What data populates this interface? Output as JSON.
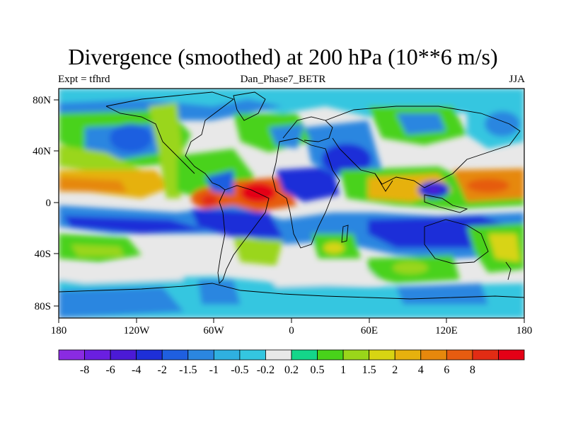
{
  "title": "Divergence (smoothed) at 200 hPa (10**6 m/s)",
  "subtitle_left": "Expt = tfhrd",
  "subtitle_center": "Dan_Phase7_BETR",
  "subtitle_right": "JJA",
  "x_ticks": [
    "180",
    "120W",
    "60W",
    "0",
    "60E",
    "120E",
    "180"
  ],
  "y_ticks": [
    "80N",
    "40N",
    "0",
    "40S",
    "80S"
  ],
  "colorbar": {
    "colors": [
      "#8a2be2",
      "#6a1fe0",
      "#4b1ad6",
      "#1e2fd8",
      "#1f5fe0",
      "#2b86e0",
      "#2fb0e0",
      "#34c6e0",
      "#e8e8e8",
      "#14d68a",
      "#48d21a",
      "#9ad61a",
      "#d8d412",
      "#e6b10e",
      "#e6880c",
      "#e65c10",
      "#e22c14",
      "#e40016"
    ],
    "labels": [
      "-8",
      "-6",
      "-4",
      "-2",
      "-1.5",
      "-1",
      "-0.5",
      "-0.2",
      "0.2",
      "0.5",
      "1",
      "1.5",
      "2",
      "4",
      "6",
      "8"
    ]
  },
  "map_fields": {
    "background": "#e8e8e8",
    "lon_range": [
      -180,
      180
    ],
    "lat_range": [
      -90,
      90
    ]
  }
}
